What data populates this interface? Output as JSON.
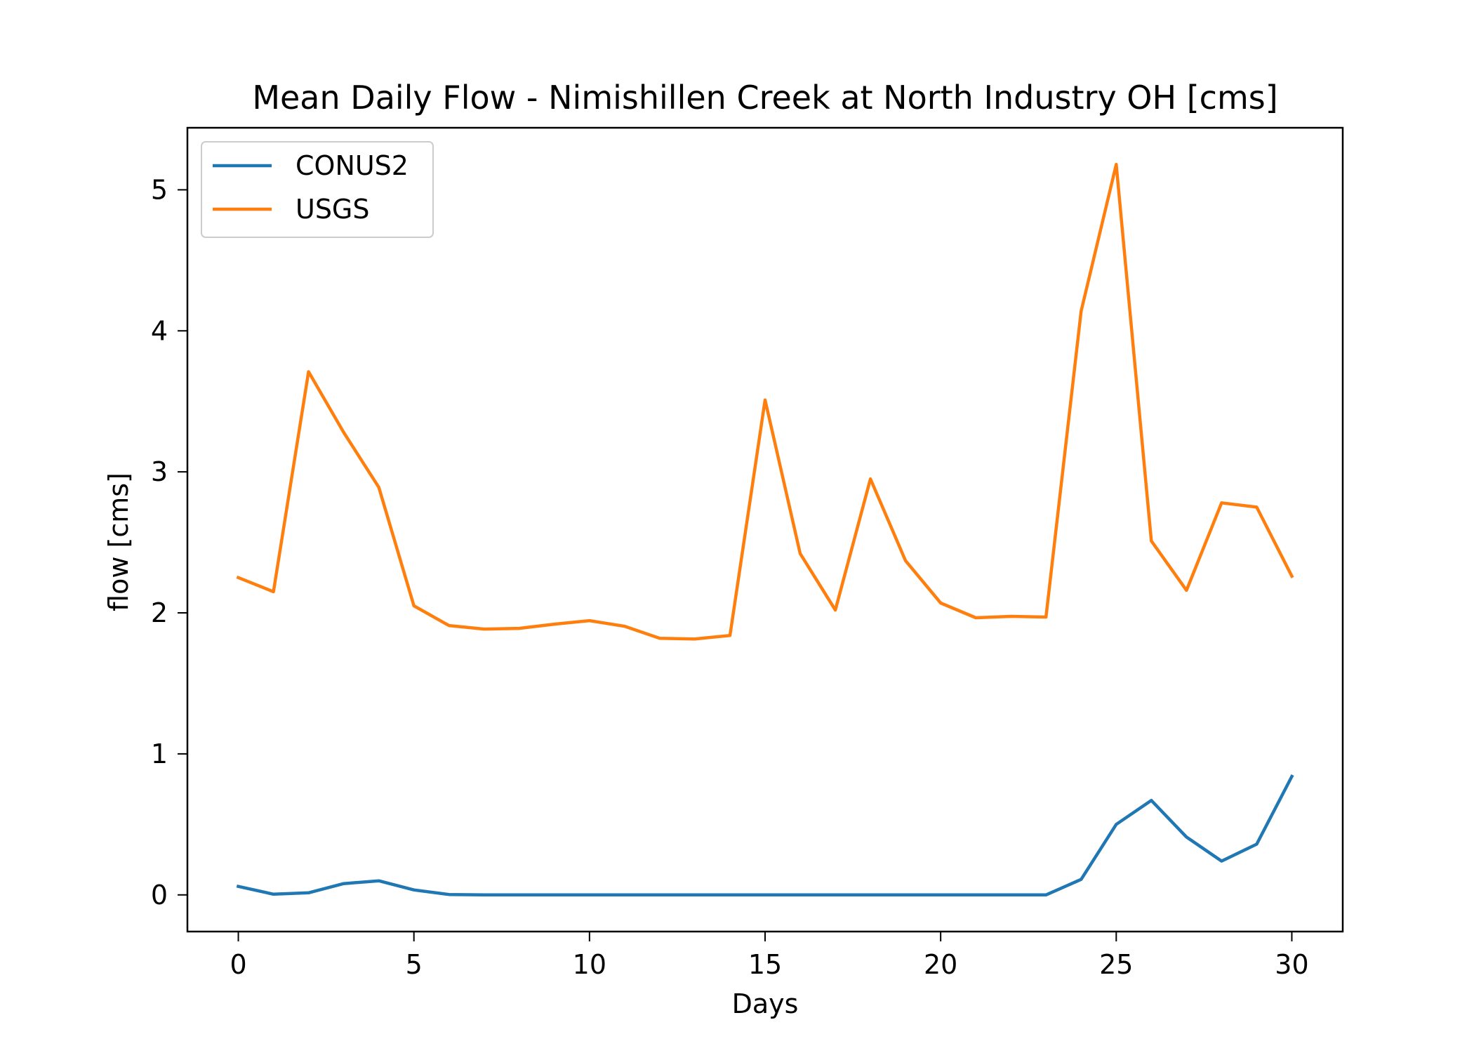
{
  "chart_data": {
    "type": "line",
    "title": "Mean Daily Flow - Nimishillen Creek at North Industry OH [cms]",
    "xlabel": "Days",
    "ylabel": "flow [cms]",
    "xlim": [
      -1.45,
      31.45
    ],
    "ylim": [
      -0.26,
      5.44
    ],
    "xticks": [
      0,
      5,
      10,
      15,
      20,
      25,
      30
    ],
    "yticks": [
      0,
      1,
      2,
      3,
      4,
      5
    ],
    "grid": false,
    "legend_position": "top-left",
    "x": [
      0,
      1,
      2,
      3,
      4,
      5,
      6,
      7,
      8,
      9,
      10,
      11,
      12,
      13,
      14,
      15,
      16,
      17,
      18,
      19,
      20,
      21,
      22,
      23,
      24,
      25,
      26,
      27,
      28,
      29,
      30
    ],
    "series": [
      {
        "name": "CONUS2",
        "color": "#1f77b4",
        "values": [
          0.06,
          0.005,
          0.015,
          0.08,
          0.1,
          0.035,
          0.003,
          0.0,
          0.0,
          0.0,
          0.0,
          0.0,
          0.0,
          0.0,
          0.0,
          0.0,
          0.0,
          0.0,
          0.0,
          0.0,
          0.0,
          0.0,
          0.0,
          0.0,
          0.11,
          0.5,
          0.67,
          0.41,
          0.24,
          0.36,
          0.84
        ]
      },
      {
        "name": "USGS",
        "color": "#ff7f0e",
        "values": [
          2.25,
          2.15,
          3.71,
          3.28,
          2.89,
          2.05,
          1.91,
          1.885,
          1.89,
          1.92,
          1.945,
          1.905,
          1.82,
          1.815,
          1.84,
          3.51,
          2.42,
          2.02,
          2.95,
          2.37,
          2.07,
          1.965,
          1.975,
          1.97,
          4.14,
          5.18,
          2.51,
          2.16,
          2.78,
          2.75,
          2.26
        ]
      }
    ]
  }
}
